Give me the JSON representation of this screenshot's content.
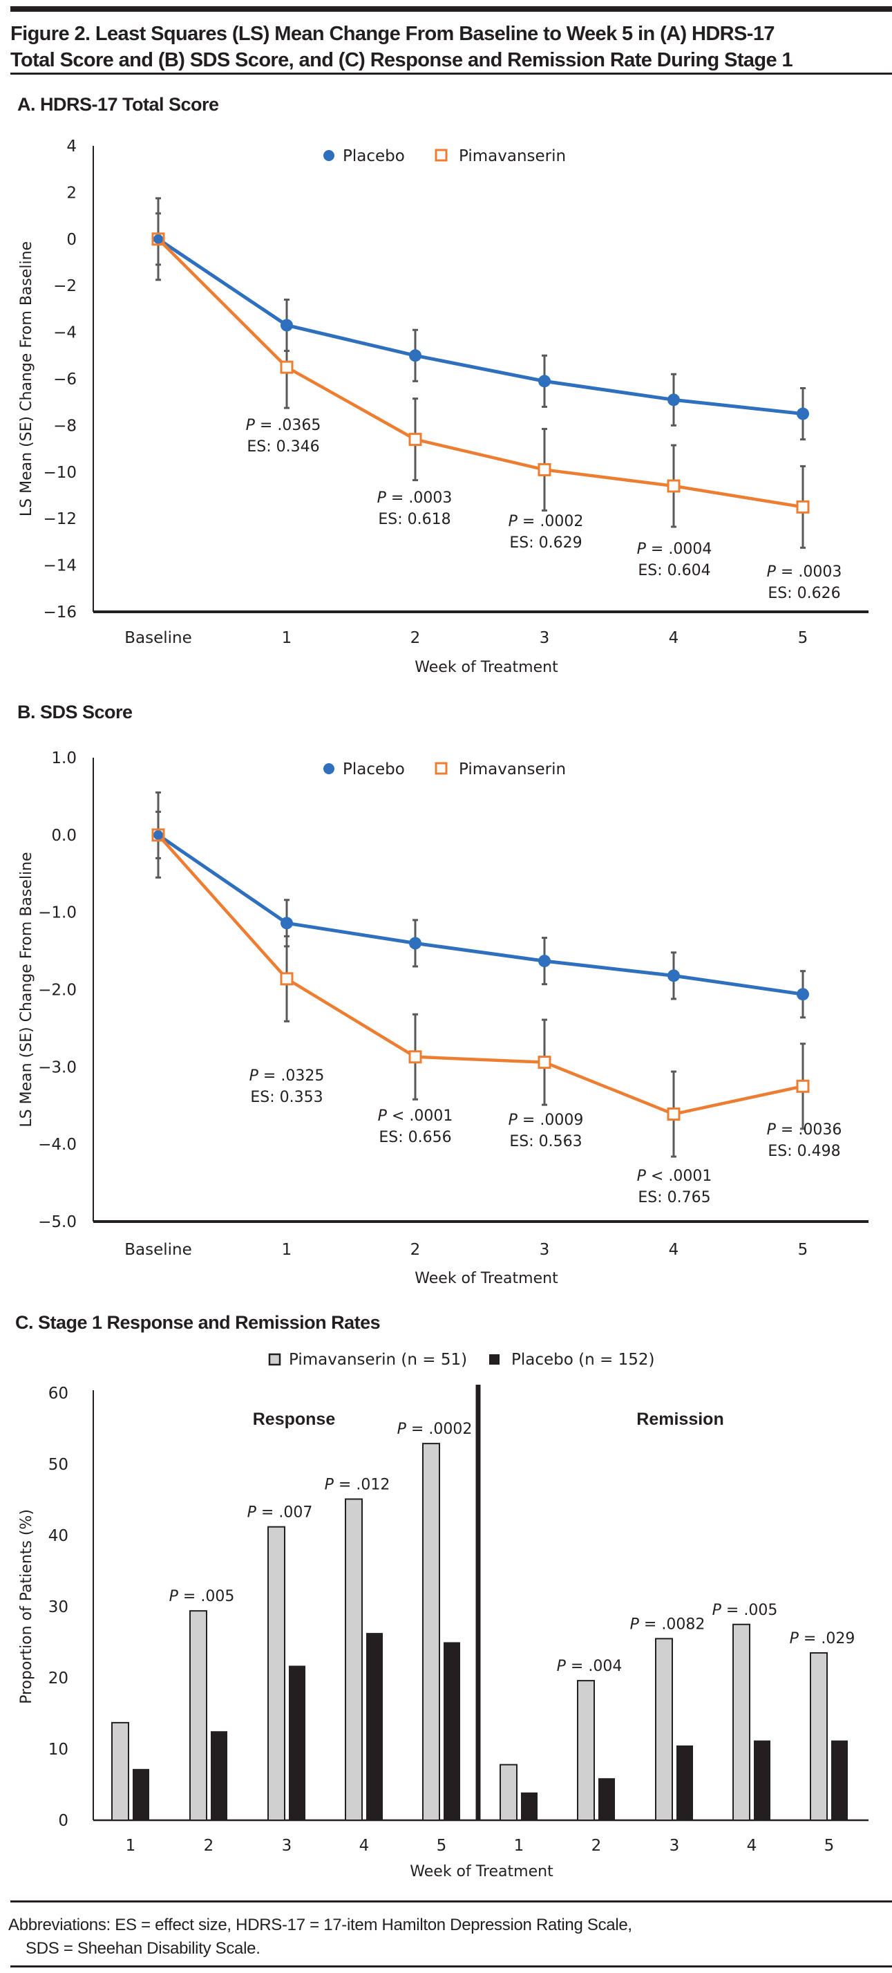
{
  "figure": {
    "title_line1": "Figure 2. Least Squares (LS) Mean Change From Baseline to Week 5 in (A) HDRS-17",
    "title_line2": "Total Score and (B) SDS Score, and (C) Response and Remission Rate During Stage 1",
    "footnote_line1": "Abbreviations: ES = effect size, HDRS-17 = 17-item Hamilton Depression Rating Scale,",
    "footnote_line2": "SDS = Sheehan Disability Scale.",
    "colors": {
      "placebo_line": "#2e6fbe",
      "pimavanserin_line": "#ed7d31",
      "error_bar": "#595959",
      "pim_bar": "#d0d0d0",
      "placebo_bar": "#231f20"
    }
  },
  "chart_data": [
    {
      "id": "A",
      "type": "line",
      "title": "A. HDRS-17 Total Score",
      "xlabel": "Week of Treatment",
      "ylabel": "LS Mean (SE) Change From Baseline",
      "categories": [
        "Baseline",
        "1",
        "2",
        "3",
        "4",
        "5"
      ],
      "ylim": [
        -16,
        4
      ],
      "yticks": [
        4,
        2,
        0,
        -2,
        -4,
        -6,
        -8,
        -10,
        -12,
        -14,
        -16
      ],
      "ytick_labels": [
        "4",
        "2",
        "0",
        "−2",
        "−4",
        "−6",
        "−8",
        "−10",
        "−12",
        "−14",
        "−16"
      ],
      "legend": "top-center",
      "grid": false,
      "series": [
        {
          "name": "Placebo",
          "marker": "circle",
          "values": [
            0,
            -3.7,
            -5.0,
            -6.1,
            -6.9,
            -7.5
          ],
          "se": [
            1.1,
            1.1,
            1.1,
            1.1,
            1.1,
            1.1
          ]
        },
        {
          "name": "Pimavanserin",
          "marker": "open-square",
          "values": [
            0,
            -5.5,
            -8.6,
            -9.9,
            -10.6,
            -11.5
          ],
          "se": [
            1.75,
            1.75,
            1.75,
            1.75,
            1.75,
            1.75
          ]
        }
      ],
      "annotations": [
        {
          "x": "1",
          "p": "P",
          "p_text": " = .0365",
          "es": "ES: 0.346"
        },
        {
          "x": "2",
          "p": "P",
          "p_text": " = .0003",
          "es": "ES: 0.618"
        },
        {
          "x": "3",
          "p": "P",
          "p_text": " = .0002",
          "es": "ES: 0.629"
        },
        {
          "x": "4",
          "p": "P",
          "p_text": " = .0004",
          "es": "ES: 0.604"
        },
        {
          "x": "5",
          "p": "P",
          "p_text": " = .0003",
          "es": "ES: 0.626"
        }
      ]
    },
    {
      "id": "B",
      "type": "line",
      "title": "B. SDS Score",
      "xlabel": "Week of Treatment",
      "ylabel": "LS Mean (SE) Change From Baseline",
      "categories": [
        "Baseline",
        "1",
        "2",
        "3",
        "4",
        "5"
      ],
      "ylim": [
        -5.0,
        1.0
      ],
      "yticks": [
        1.0,
        0.0,
        -1.0,
        -2.0,
        -3.0,
        -4.0,
        -5.0
      ],
      "ytick_labels": [
        "1.0",
        "0.0",
        "−1.0",
        "−2.0",
        "−3.0",
        "−4.0",
        "−5.0"
      ],
      "legend": "top-center",
      "grid": false,
      "series": [
        {
          "name": "Placebo",
          "marker": "circle",
          "values": [
            0,
            -1.14,
            -1.4,
            -1.63,
            -1.82,
            -2.06
          ],
          "se": [
            0.3,
            0.3,
            0.3,
            0.3,
            0.3,
            0.3
          ]
        },
        {
          "name": "Pimavanserin",
          "marker": "open-square",
          "values": [
            0,
            -1.86,
            -2.87,
            -2.94,
            -3.61,
            -3.25
          ],
          "se": [
            0.55,
            0.55,
            0.55,
            0.55,
            0.55,
            0.55
          ]
        }
      ],
      "annotations": [
        {
          "x": "1",
          "p": "P",
          "p_text": " = .0325",
          "es": "ES: 0.353"
        },
        {
          "x": "2",
          "p": "P",
          "p_text": " < .0001",
          "es": "ES: 0.656"
        },
        {
          "x": "3",
          "p": "P",
          "p_text": " = .0009",
          "es": "ES: 0.563"
        },
        {
          "x": "4",
          "p": "P",
          "p_text": " < .0001",
          "es": "ES: 0.765"
        },
        {
          "x": "5",
          "p": "P",
          "p_text": " = .0036",
          "es": "ES: 0.498"
        }
      ]
    },
    {
      "id": "C",
      "type": "bar",
      "title": "C. Stage 1 Response and Remission Rates",
      "xlabel": "Week of Treatment",
      "ylabel": "Proportion of Patients (%)",
      "ylim": [
        0,
        60
      ],
      "yticks": [
        0,
        10,
        20,
        30,
        40,
        50,
        60
      ],
      "legend": "top-center",
      "grid": false,
      "groups": [
        {
          "label": "Response",
          "categories": [
            "1",
            "2",
            "3",
            "4",
            "5"
          ],
          "series": [
            {
              "name": "Pimavanserin (n = 51)",
              "values": [
                13.7,
                29.4,
                41.2,
                45.1,
                52.9
              ]
            },
            {
              "name": "Placebo (n = 152)",
              "values": [
                7.2,
                12.5,
                21.7,
                26.3,
                25.0
              ]
            }
          ],
          "p_values": [
            "",
            " = .005",
            " = .007",
            " = .012",
            " = .0002"
          ]
        },
        {
          "label": "Remission",
          "categories": [
            "1",
            "2",
            "3",
            "4",
            "5"
          ],
          "series": [
            {
              "name": "Pimavanserin (n = 51)",
              "values": [
                7.8,
                19.6,
                25.5,
                27.5,
                23.5
              ]
            },
            {
              "name": "Placebo (n = 152)",
              "values": [
                3.9,
                5.9,
                10.5,
                11.2,
                11.2
              ]
            }
          ],
          "p_values": [
            "",
            " = .004",
            " = .0082",
            " = .005",
            " = .029"
          ]
        }
      ]
    }
  ]
}
